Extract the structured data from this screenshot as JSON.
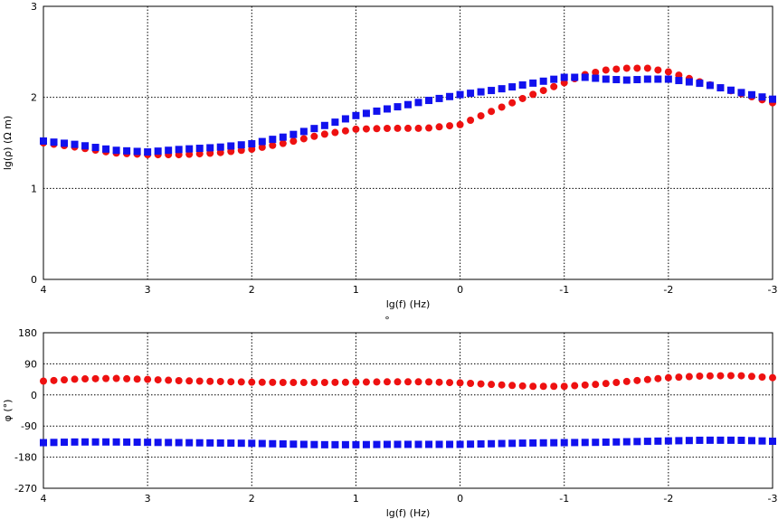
{
  "colors": {
    "series_red": "#ee1111",
    "series_blue": "#1111ee",
    "grid": "#000000",
    "background": "#ffffff"
  },
  "between_panels_label": "°",
  "chart_data": [
    {
      "type": "scatter",
      "title": "",
      "xlabel": "lg(f) (Hz)",
      "ylabel": "lg(ρ) (Ω m)",
      "xlim": [
        4,
        -3
      ],
      "ylim": [
        0,
        3
      ],
      "x_ticks": [
        4,
        3,
        2,
        1,
        0,
        -1,
        -2,
        -3
      ],
      "y_ticks": [
        0,
        1,
        2,
        3
      ],
      "grid": true,
      "legend": "none",
      "series": [
        {
          "marker": "circle",
          "color": "#ee1111",
          "x": [
            4.0,
            3.67,
            3.33,
            3.0,
            2.67,
            2.33,
            2.0,
            1.67,
            1.33,
            1.0,
            0.67,
            0.33,
            0.0,
            -0.33,
            -0.67,
            -1.0,
            -1.2,
            -1.4,
            -1.6,
            -1.8,
            -2.0,
            -2.33,
            -2.67,
            -3.0
          ],
          "y": [
            1.5,
            1.45,
            1.39,
            1.37,
            1.37,
            1.39,
            1.43,
            1.5,
            1.59,
            1.65,
            1.66,
            1.66,
            1.7,
            1.86,
            2.02,
            2.16,
            2.25,
            2.3,
            2.32,
            2.32,
            2.28,
            2.16,
            2.05,
            1.94
          ]
        },
        {
          "marker": "square",
          "color": "#1111ee",
          "x": [
            4.0,
            3.67,
            3.33,
            3.0,
            2.67,
            2.33,
            2.0,
            1.67,
            1.33,
            1.0,
            0.67,
            0.33,
            0.0,
            -0.33,
            -0.67,
            -1.0,
            -1.2,
            -1.4,
            -1.6,
            -1.8,
            -2.0,
            -2.33,
            -2.67,
            -3.0
          ],
          "y": [
            1.52,
            1.48,
            1.42,
            1.4,
            1.43,
            1.45,
            1.49,
            1.57,
            1.68,
            1.8,
            1.88,
            1.96,
            2.03,
            2.08,
            2.15,
            2.22,
            2.22,
            2.2,
            2.19,
            2.2,
            2.2,
            2.15,
            2.06,
            1.98
          ]
        }
      ]
    },
    {
      "type": "scatter",
      "title": "",
      "xlabel": "lg(f) (Hz)",
      "ylabel": "φ (°)",
      "xlim": [
        4,
        -3
      ],
      "ylim": [
        -270,
        180
      ],
      "x_ticks": [
        4,
        3,
        2,
        1,
        0,
        -1,
        -2,
        -3
      ],
      "y_ticks": [
        180,
        90,
        0,
        -90,
        -180,
        -270
      ],
      "grid": true,
      "legend": "none",
      "series": [
        {
          "marker": "circle",
          "color": "#ee1111",
          "x": [
            4.0,
            3.67,
            3.33,
            3.0,
            2.67,
            2.33,
            2.0,
            1.67,
            1.33,
            1.0,
            0.67,
            0.33,
            0.0,
            -0.33,
            -0.67,
            -1.0,
            -1.33,
            -1.67,
            -2.0,
            -2.33,
            -2.67,
            -3.0
          ],
          "y": [
            40,
            46,
            48,
            45,
            41,
            39,
            37,
            36,
            36,
            37,
            38,
            38,
            35,
            30,
            25,
            25,
            31,
            41,
            50,
            55,
            56,
            50
          ]
        },
        {
          "marker": "square",
          "color": "#1111ee",
          "x": [
            4.0,
            3.67,
            3.33,
            3.0,
            2.67,
            2.33,
            2.0,
            1.67,
            1.33,
            1.0,
            0.67,
            0.33,
            0.0,
            -0.33,
            -0.67,
            -1.0,
            -1.33,
            -1.67,
            -2.0,
            -2.33,
            -2.67,
            -3.0
          ],
          "y": [
            -138,
            -136,
            -136,
            -137,
            -138,
            -139,
            -140,
            -142,
            -144,
            -144,
            -143,
            -143,
            -143,
            -141,
            -139,
            -138,
            -137,
            -135,
            -133,
            -131,
            -131,
            -134
          ]
        }
      ]
    }
  ]
}
